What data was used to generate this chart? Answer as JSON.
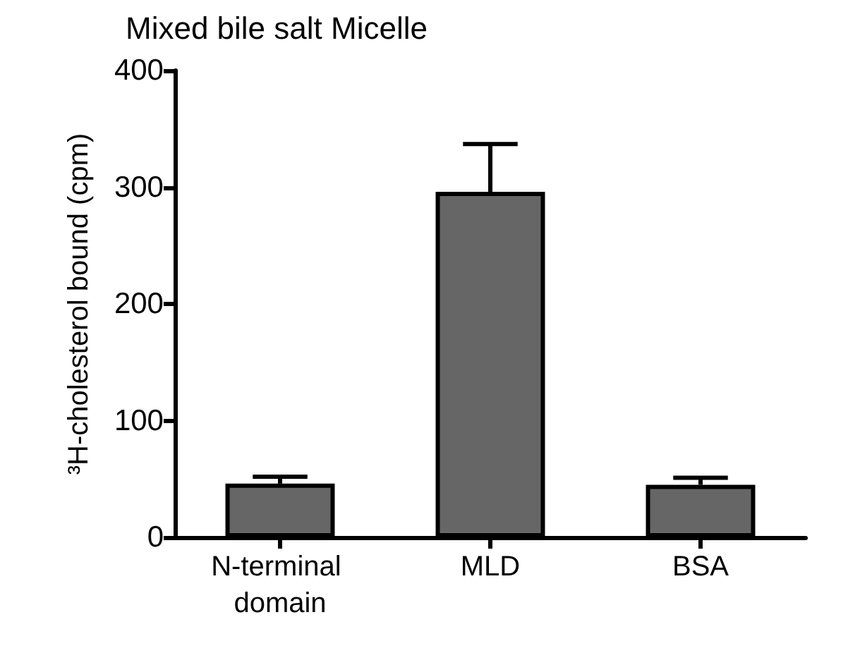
{
  "chart_data": {
    "type": "bar",
    "title": "Mixed bile salt Micelle",
    "ylabel": "³H-cholesterol bound (cpm)",
    "categories": [
      "N-terminal domain",
      "MLD",
      "BSA"
    ],
    "values": [
      46,
      296,
      45
    ],
    "errors": [
      [
        46,
        52
      ],
      [
        296,
        337
      ],
      [
        45,
        51
      ]
    ],
    "color": "#666666",
    "ylim": [
      0,
      400
    ],
    "yticks": [
      0,
      100,
      200,
      300,
      400
    ],
    "grid": false
  }
}
